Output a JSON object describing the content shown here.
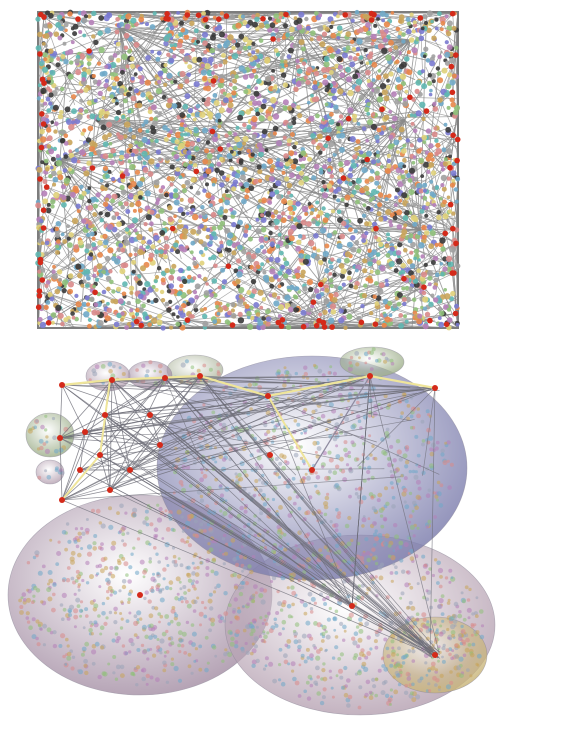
{
  "panels": [
    {
      "id": "flat-layout",
      "style": "dense node-link graph",
      "node_colors": [
        "#c9a45a",
        "#6fa8c8",
        "#b57fb8",
        "#8fc07a",
        "#d98a8a",
        "#e0d27a",
        "#5fb7b1",
        "#a0a0a0",
        "#e8874a",
        "#7a7ad0",
        "#3a3a3a"
      ],
      "edge_color": "#8a8a8a",
      "hub_color": "#d42a1a"
    },
    {
      "id": "clustered-layout",
      "style": "nested translucent cluster spheres",
      "node_colors": [
        "#c9a45a",
        "#6fa8c8",
        "#b57fb8",
        "#8fc07a",
        "#d98a8a",
        "#9aa4b8"
      ],
      "edge_color": "#6e6e78",
      "highlight_edge_color": "#efe59a",
      "hub_color": "#d42a1a",
      "cluster_colors": [
        "#7e7fae",
        "#a893a8",
        "#b8a4b4",
        "#c9b57a",
        "#9fb08c",
        "#b0b8a0"
      ]
    }
  ]
}
